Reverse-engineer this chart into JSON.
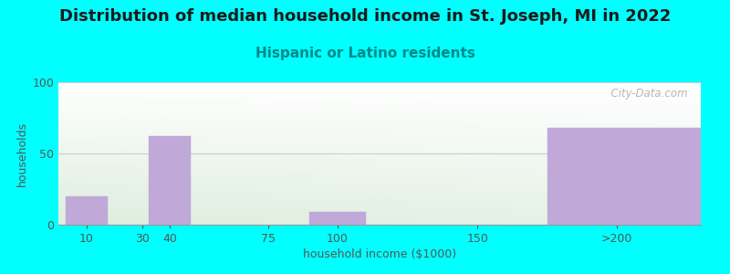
{
  "title": "Distribution of median household income in St. Joseph, MI in 2022",
  "subtitle": "Hispanic or Latino residents",
  "xlabel": "household income ($1000)",
  "ylabel": "households",
  "background_color": "#00FFFF",
  "plot_bg_top_left": "#DDEEDD",
  "plot_bg_top_right": "#FFFFFF",
  "bar_color": "#C0A8D8",
  "categories": [
    "10",
    "30",
    "40",
    "75",
    "100",
    "150",
    ">200"
  ],
  "x_positions": [
    10,
    30,
    40,
    75,
    100,
    150,
    200
  ],
  "bar_widths": [
    15,
    15,
    15,
    15,
    20,
    15,
    70
  ],
  "values": [
    20,
    0,
    62,
    0,
    9,
    0,
    68
  ],
  "ylim": [
    0,
    100
  ],
  "title_fontsize": 13,
  "subtitle_fontsize": 11,
  "label_fontsize": 9,
  "tick_fontsize": 9,
  "watermark": "  City-Data.com",
  "title_color": "#1a1a1a",
  "subtitle_color": "#008888",
  "axis_color": "#555555",
  "tick_color": "#555555",
  "grid_color": "#CCCCCC"
}
